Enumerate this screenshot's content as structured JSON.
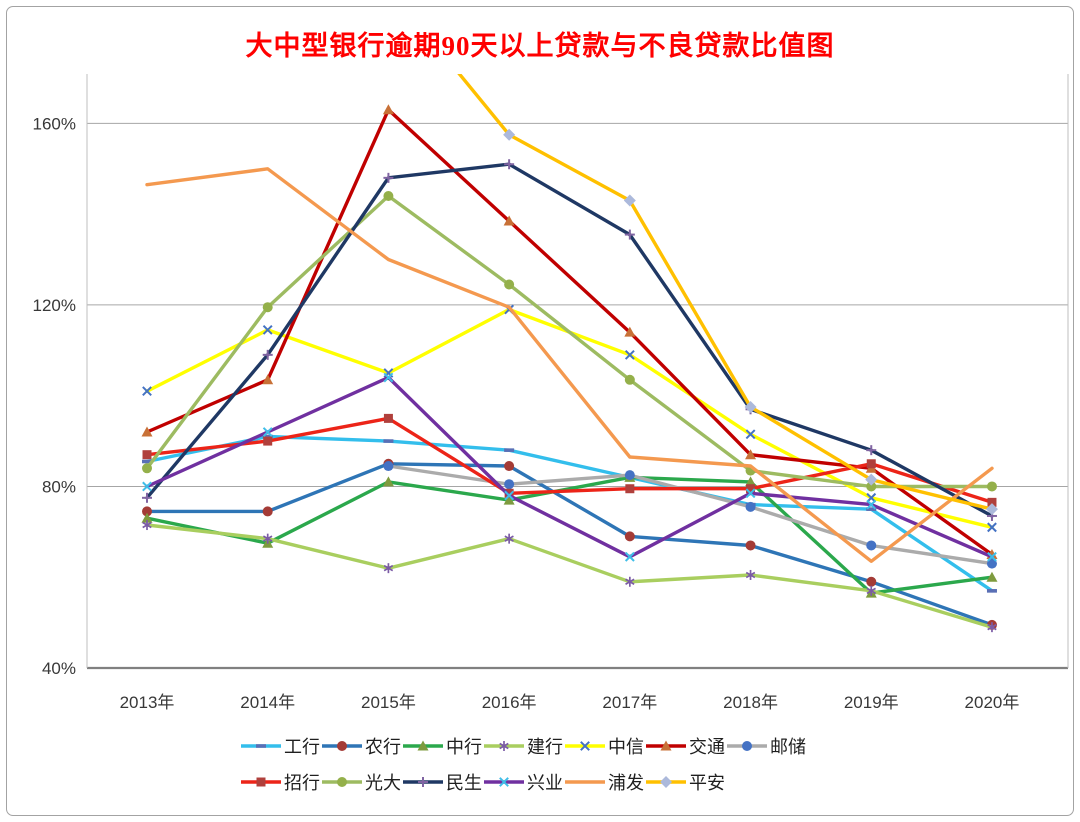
{
  "chart_data": {
    "type": "line",
    "title": "大中型银行逾期90天以上贷款与不良贷款比值图",
    "title_color": "#ff0000",
    "categories": [
      "2013年",
      "2014年",
      "2015年",
      "2016年",
      "2017年",
      "2018年",
      "2019年",
      "2020年"
    ],
    "y_ticks": [
      "40%",
      "80%",
      "120%",
      "160%"
    ],
    "y_tick_values": [
      40,
      80,
      120,
      160
    ],
    "ylim": [
      40,
      170
    ],
    "grid": true,
    "legend_position": "bottom",
    "series": [
      {
        "id": "icbc",
        "name": "工行",
        "color": "#33beec",
        "marker": "dash",
        "marker_color": "#5a6fb5",
        "values": [
          85.5,
          91,
          90,
          88,
          82,
          76,
          75,
          57
        ]
      },
      {
        "id": "abc",
        "name": "农行",
        "color": "#2e75b6",
        "marker": "circle",
        "marker_color": "#a43b36",
        "values": [
          74.5,
          74.5,
          85,
          84.5,
          69,
          67,
          59,
          49.5
        ]
      },
      {
        "id": "boc",
        "name": "中行",
        "color": "#2ba84c",
        "marker": "triangle",
        "marker_color": "#7e9b3e",
        "values": [
          73,
          67.5,
          81,
          77,
          82,
          81,
          56.5,
          60
        ]
      },
      {
        "id": "ccb",
        "name": "建行",
        "color": "#a9ce5f",
        "marker": "asterisk",
        "marker_color": "#7b5ba6",
        "values": [
          71.5,
          68.5,
          62,
          68.5,
          59,
          60.5,
          57,
          49
        ]
      },
      {
        "id": "citic",
        "name": "中信",
        "color": "#ffff00",
        "marker": "x",
        "marker_color": "#4472c4",
        "values": [
          101,
          114.5,
          105,
          119,
          109,
          91.5,
          77.5,
          71
        ]
      },
      {
        "id": "bocom",
        "name": "交通",
        "color": "#c00000",
        "marker": "triangle",
        "marker_color": "#c87137",
        "values": [
          92,
          103.5,
          163,
          138.5,
          114,
          87,
          84,
          65
        ]
      },
      {
        "id": "psbc",
        "name": "邮储",
        "color": "#ababab",
        "marker": "circle",
        "marker_color": "#4472c4",
        "values": [
          null,
          null,
          84.5,
          80.5,
          82.5,
          75.5,
          67,
          63
        ]
      },
      {
        "id": "cmb",
        "name": "招行",
        "color": "#ec2418",
        "marker": "square",
        "marker_color": "#b0403c",
        "values": [
          87,
          90,
          95,
          78.5,
          79.5,
          79.5,
          85,
          76.5
        ]
      },
      {
        "id": "ceb",
        "name": "光大",
        "color": "#9dbb61",
        "marker": "circle",
        "marker_color": "#94b04a",
        "values": [
          84,
          119.5,
          144,
          124.5,
          103.5,
          83.5,
          80,
          80
        ]
      },
      {
        "id": "minsheng",
        "name": "民生",
        "color": "#1f3864",
        "marker": "plus",
        "marker_color": "#8064a2",
        "values": [
          77.5,
          109,
          148,
          151,
          135.5,
          97,
          88,
          73.5
        ]
      },
      {
        "id": "cib",
        "name": "兴业",
        "color": "#7030a0",
        "marker": "x",
        "marker_color": "#3fbee8",
        "values": [
          80,
          92,
          104,
          78,
          64.5,
          78.5,
          76,
          64.5
        ]
      },
      {
        "id": "spdb",
        "name": "浦发",
        "color": "#f4994f",
        "marker": "none",
        "marker_color": "#f4994f",
        "values": [
          146.5,
          150,
          130,
          119.5,
          86.5,
          84.5,
          63.5,
          84
        ]
      },
      {
        "id": "pingan",
        "name": "平安",
        "color": "#ffc000",
        "marker": "diamond",
        "marker_color": "#acb9db",
        "values": [
          null,
          null,
          190,
          157.5,
          143,
          97.5,
          81.5,
          75
        ],
        "note": "2015 segment rises above axis max and is clipped at plot top"
      }
    ],
    "colors": {
      "gridline": "#a6a6a6",
      "axis_line": "#808080",
      "plot_side_border": "#bfbfbf",
      "tick_label": "#383838",
      "frame_border": "#a3a3a3"
    }
  }
}
